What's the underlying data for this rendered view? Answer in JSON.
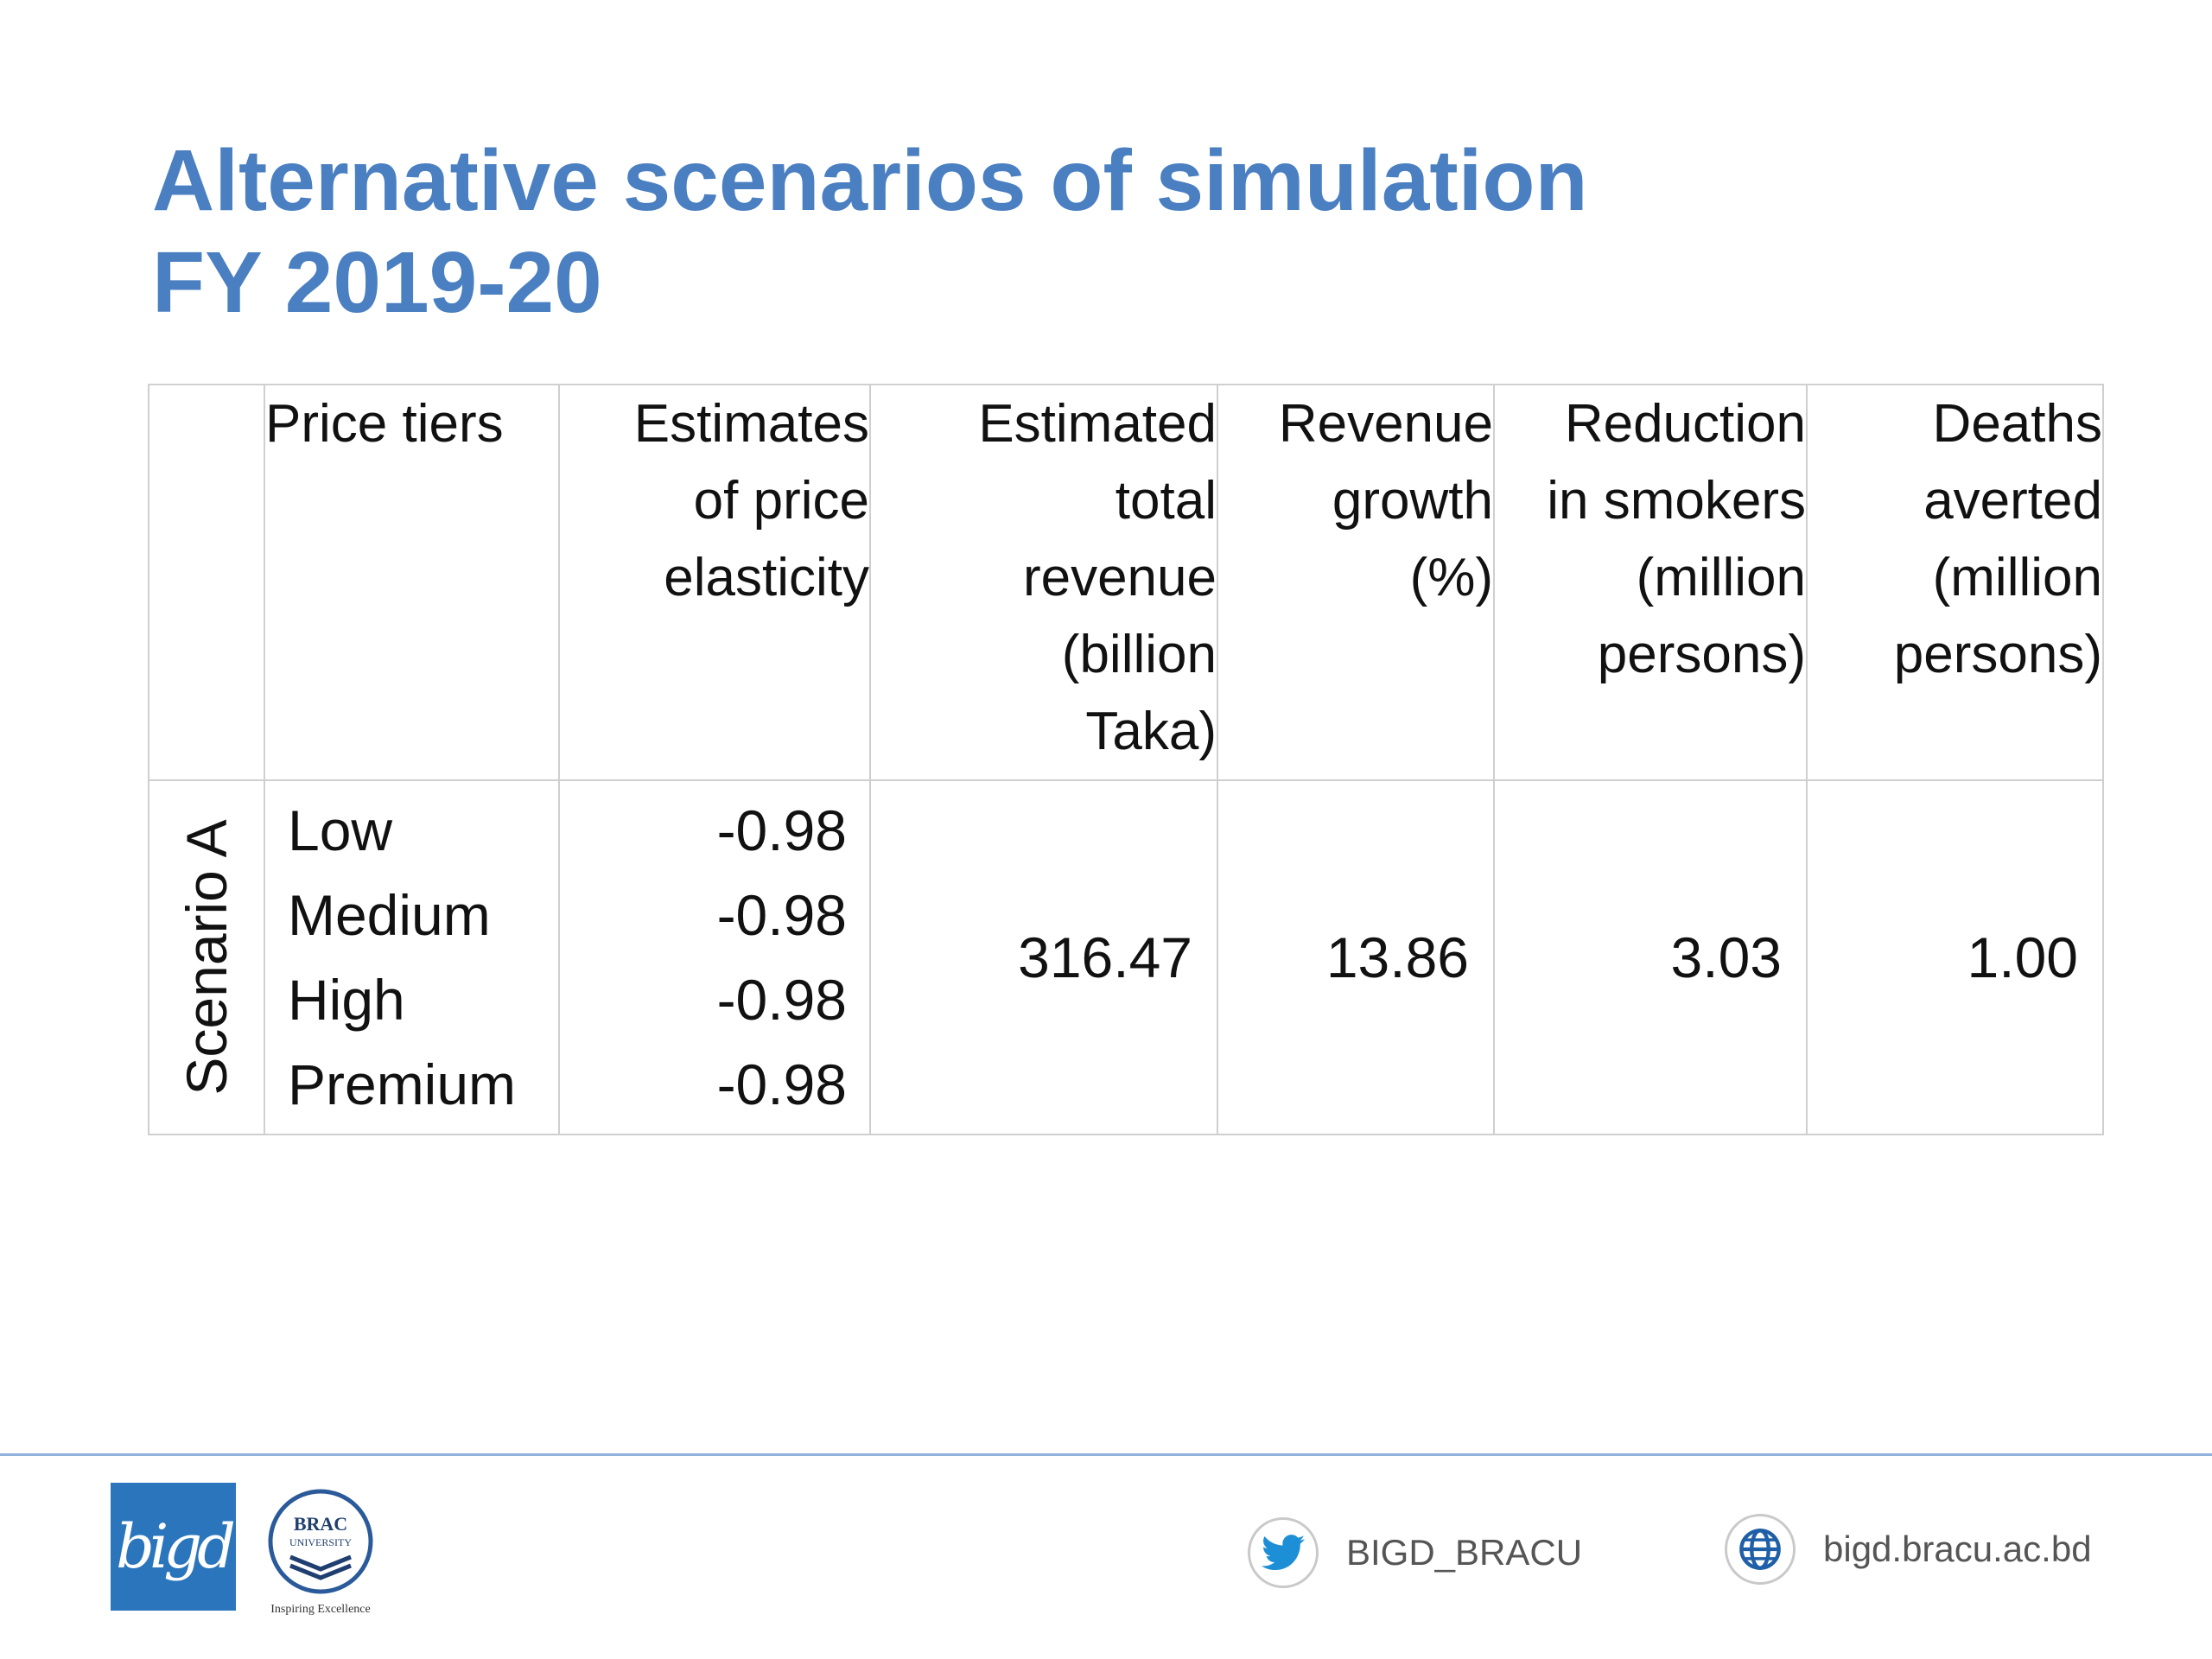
{
  "title": {
    "line1": "Alternative scenarios of simulation",
    "line2": "FY 2019-20"
  },
  "table": {
    "headers": {
      "price_tiers": [
        "Price tiers"
      ],
      "elasticity": [
        "Estimates",
        "of price",
        "elasticity"
      ],
      "revenue": [
        "Estimated",
        "total",
        "revenue",
        "(billion",
        "Taka)"
      ],
      "growth": [
        "Revenue",
        "growth",
        "(%)"
      ],
      "reduction": [
        "Reduction",
        "in smokers",
        "(million",
        "persons)"
      ],
      "deaths": [
        "Deaths",
        "averted",
        "(million",
        "persons)"
      ]
    },
    "scenario": "Scenario A",
    "tiers": [
      "Low",
      "Medium",
      "High",
      "Premium"
    ],
    "elasticities": [
      "-0.98",
      "-0.98",
      "-0.98",
      "-0.98"
    ],
    "total_revenue": "316.47",
    "revenue_growth": "13.86",
    "reduction_in_smokers": "3.03",
    "deaths_averted": "1.00"
  },
  "footer": {
    "bigd_logo_text": "bigd",
    "brac_logo_text": [
      "BRAC",
      "UNIVERSITY",
      "Inspiring Excellence"
    ],
    "twitter_handle": "BIGD_BRACU",
    "website": "bigd.bracu.ac.bd",
    "accent_color": "#4a7fc1",
    "icons": [
      "twitter-icon",
      "globe-icon"
    ]
  }
}
